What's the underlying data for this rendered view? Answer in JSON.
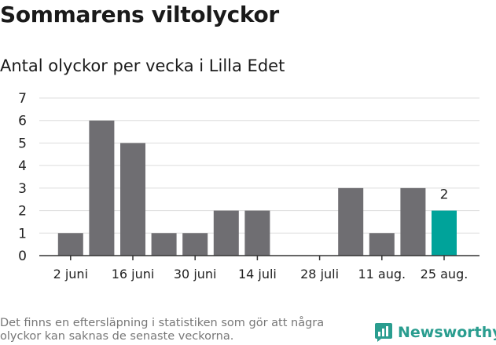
{
  "title": "Sommarens viltolyckor",
  "subtitle": "Antal olyckor per vecka i Lilla Edet",
  "footnote": "Det finns en eftersläpning i statistiken som gör att några olyckor kan saknas de senaste veckorna.",
  "brand": {
    "name": "Newsworthy",
    "icon": "newsworthy-chart-logo-icon"
  },
  "colors": {
    "bar": "#6f6e72",
    "highlight": "#00a39a",
    "grid": "#dddddd",
    "brand": "#2a9d8f"
  },
  "chart_data": {
    "type": "bar",
    "title": "Sommarens viltolyckor",
    "subtitle": "Antal olyckor per vecka i Lilla Edet",
    "xlabel": "",
    "ylabel": "",
    "ylim": [
      0,
      7
    ],
    "yticks": [
      0,
      1,
      2,
      3,
      4,
      5,
      6,
      7
    ],
    "grid": true,
    "categories": [
      "2 juni",
      "9 juni",
      "16 juni",
      "23 juni",
      "30 juni",
      "7 juli",
      "14 juli",
      "21 juli",
      "28 juli",
      "4 aug.",
      "11 aug.",
      "18 aug.",
      "25 aug."
    ],
    "x_tick_labels": [
      "2 juni",
      "16 juni",
      "30 juni",
      "14 juli",
      "28 juli",
      "11 aug.",
      "25 aug."
    ],
    "values": [
      1,
      6,
      5,
      1,
      1,
      2,
      2,
      0,
      0,
      3,
      1,
      3,
      2
    ],
    "highlight_index": 12,
    "annotations": [
      {
        "category": "25 aug.",
        "text": "2"
      }
    ]
  }
}
